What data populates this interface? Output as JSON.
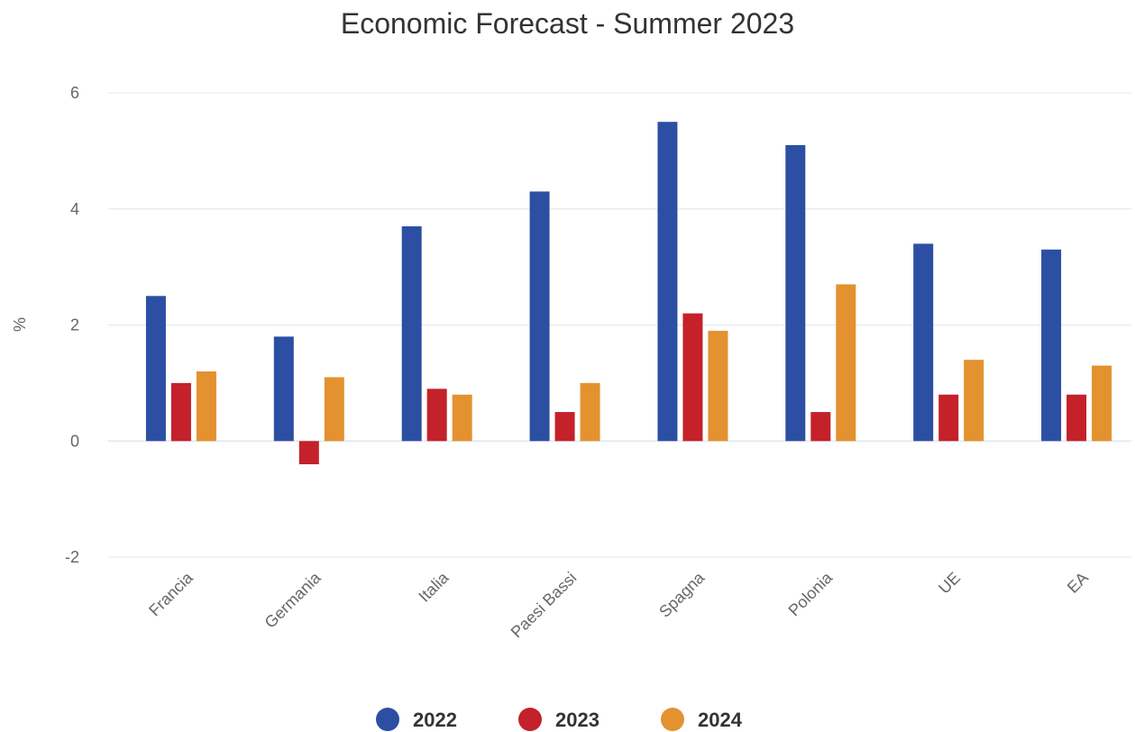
{
  "chart_data": {
    "type": "bar",
    "title": "Economic Forecast - Summer 2023",
    "xlabel": "",
    "ylabel": "%",
    "ylim": [
      -2,
      6
    ],
    "yticks": [
      -2,
      0,
      2,
      4,
      6
    ],
    "grid": true,
    "legend_position": "bottom",
    "categories": [
      "Francia",
      "Germania",
      "Italia",
      "Paesi Bassi",
      "Spagna",
      "Polonia",
      "UE",
      "EA"
    ],
    "series": [
      {
        "name": "2022",
        "color": "#2c4fa3",
        "values": [
          2.5,
          1.8,
          3.7,
          4.3,
          5.5,
          5.1,
          3.4,
          3.3
        ]
      },
      {
        "name": "2023",
        "color": "#c4212b",
        "values": [
          1.0,
          -0.4,
          0.9,
          0.5,
          2.2,
          0.5,
          0.8,
          0.8
        ]
      },
      {
        "name": "2024",
        "color": "#e3922f",
        "values": [
          1.2,
          1.1,
          0.8,
          1.0,
          1.9,
          2.7,
          1.4,
          1.3
        ]
      }
    ]
  }
}
